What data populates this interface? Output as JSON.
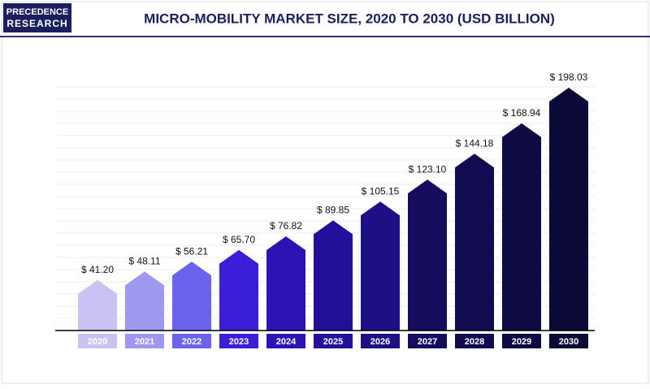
{
  "logo": [
    "PRECEDENCE",
    "RESEARCH"
  ],
  "chart_data": {
    "type": "bar",
    "title": "MICRO-MOBILITY MARKET SIZE, 2020 TO 2030 (USD BILLION)",
    "categories": [
      "2020",
      "2021",
      "2022",
      "2023",
      "2024",
      "2025",
      "2026",
      "2027",
      "2028",
      "2029",
      "2030"
    ],
    "values": [
      41.2,
      48.11,
      56.21,
      65.7,
      76.82,
      89.85,
      105.15,
      123.1,
      144.18,
      168.94,
      198.03
    ],
    "value_labels": [
      "$ 41.20",
      "$ 48.11",
      "$ 56.21",
      "$ 65.70",
      "$ 76.82",
      "$ 89.85",
      "$ 105.15",
      "$ 123.10",
      "$ 144.18",
      "$ 168.94",
      "$ 198.03"
    ],
    "colors": [
      "#c9c3f3",
      "#9d98f0",
      "#6b63ec",
      "#3a1fd6",
      "#2b13b4",
      "#22109a",
      "#1c1084",
      "#150c5e",
      "#110b50",
      "#0e0a43",
      "#0b0936"
    ]
  }
}
